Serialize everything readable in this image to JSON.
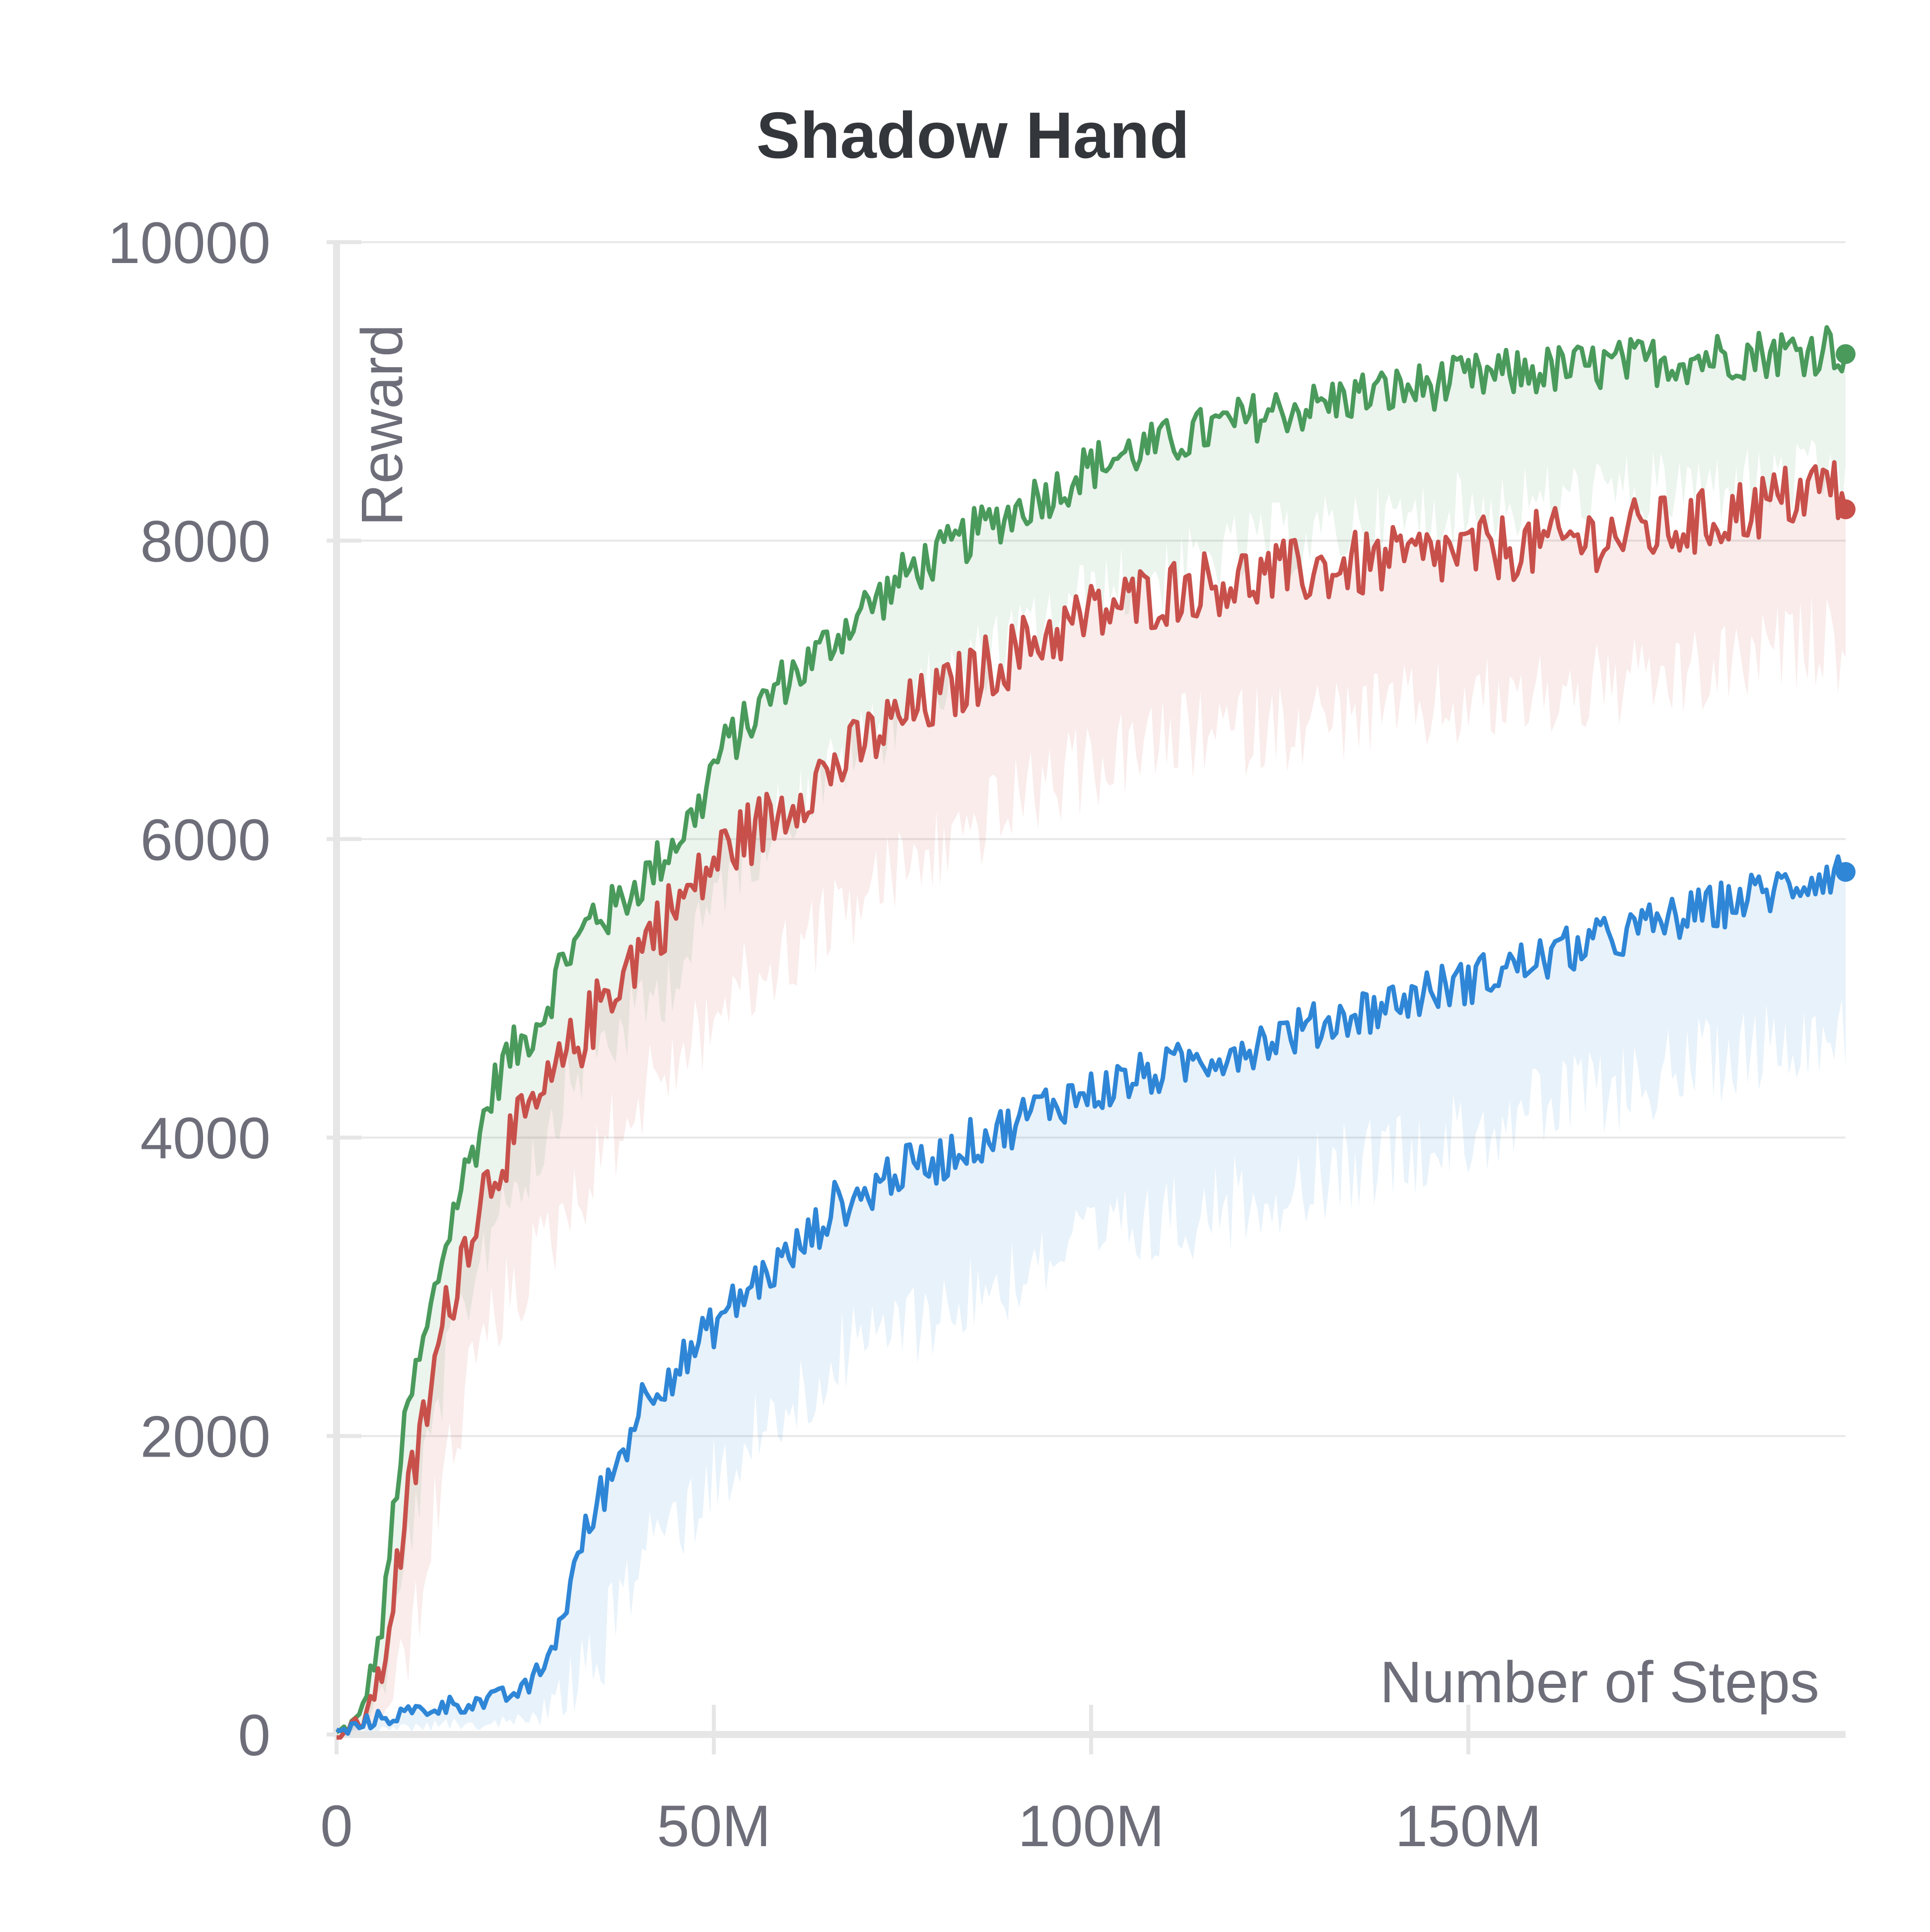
{
  "chart_data": {
    "type": "line",
    "title": "Shadow Hand",
    "xlabel": "Number of Steps",
    "ylabel": "Reward",
    "xlim": [
      0,
      200000000
    ],
    "ylim": [
      0,
      10000
    ],
    "x_ticks": [
      {
        "value": 0,
        "label": "0"
      },
      {
        "value": 50000000,
        "label": "50M"
      },
      {
        "value": 100000000,
        "label": "100M"
      },
      {
        "value": 150000000,
        "label": "150M"
      }
    ],
    "y_ticks": [
      {
        "value": 0,
        "label": "0"
      },
      {
        "value": 2000,
        "label": "2000"
      },
      {
        "value": 4000,
        "label": "4000"
      },
      {
        "value": 6000,
        "label": "6000"
      },
      {
        "value": 8000,
        "label": "8000"
      },
      {
        "value": 10000,
        "label": "10000"
      }
    ],
    "grid": true,
    "legend": "none",
    "series": [
      {
        "color": "#4a9a5c",
        "x": [
          0,
          3000000,
          6000000,
          8000000,
          10000000,
          12000000,
          14000000,
          16000000,
          18000000,
          20000000,
          22000000,
          25000000,
          28000000,
          30000000,
          32000000,
          34000000,
          36000000,
          38000000,
          40000000,
          42000000,
          45000000,
          48000000,
          50000000,
          52000000,
          55000000,
          58000000,
          60000000,
          62000000,
          65000000,
          68000000,
          70000000,
          73000000,
          76000000,
          80000000,
          83000000,
          86000000,
          90000000,
          93000000,
          96000000,
          98000000,
          100000000,
          103000000,
          106000000,
          110000000,
          113000000,
          116000000,
          120000000,
          123000000,
          126000000,
          130000000,
          133000000,
          136000000,
          140000000,
          143000000,
          146000000,
          150000000,
          153000000,
          156000000,
          160000000,
          163000000,
          166000000,
          170000000,
          173000000,
          176000000,
          180000000,
          183000000,
          186000000,
          190000000,
          193000000,
          196000000,
          198000000,
          200000000
        ],
        "values": [
          0,
          100,
          700,
          1700,
          2300,
          2700,
          3200,
          3600,
          3900,
          4200,
          4500,
          4650,
          4900,
          5200,
          5300,
          5500,
          5500,
          5600,
          5700,
          5800,
          6000,
          6200,
          6500,
          6650,
          6800,
          7000,
          7100,
          7150,
          7300,
          7450,
          7550,
          7650,
          7800,
          7900,
          8000,
          8100,
          8200,
          8300,
          8350,
          8450,
          8500,
          8550,
          8600,
          8650,
          8700,
          8750,
          8800,
          8850,
          8880,
          8900,
          8950,
          8980,
          9000,
          9020,
          9050,
          9080,
          9100,
          9120,
          9140,
          9150,
          9160,
          9180,
          9200,
          9210,
          9220,
          9240,
          9250,
          9260,
          9270,
          9280,
          9320,
          9250
        ]
      },
      {
        "color": "#c8504b",
        "x": [
          0,
          3000000,
          6000000,
          8000000,
          10000000,
          12000000,
          14000000,
          16000000,
          18000000,
          20000000,
          22000000,
          25000000,
          28000000,
          30000000,
          32000000,
          34000000,
          36000000,
          38000000,
          40000000,
          42000000,
          45000000,
          48000000,
          50000000,
          52000000,
          55000000,
          58000000,
          60000000,
          62000000,
          65000000,
          68000000,
          70000000,
          73000000,
          76000000,
          80000000,
          83000000,
          86000000,
          90000000,
          93000000,
          96000000,
          98000000,
          100000000,
          103000000,
          106000000,
          110000000,
          113000000,
          116000000,
          120000000,
          123000000,
          126000000,
          130000000,
          133000000,
          136000000,
          140000000,
          143000000,
          146000000,
          150000000,
          153000000,
          156000000,
          160000000,
          163000000,
          166000000,
          170000000,
          173000000,
          176000000,
          180000000,
          183000000,
          186000000,
          190000000,
          193000000,
          196000000,
          198000000,
          200000000
        ],
        "values": [
          0,
          50,
          400,
          1100,
          1700,
          2200,
          2700,
          3100,
          3450,
          3700,
          3900,
          4100,
          4300,
          4500,
          4650,
          4800,
          5000,
          5100,
          5250,
          5400,
          5550,
          5700,
          5850,
          5950,
          6050,
          6150,
          6250,
          6350,
          6450,
          6550,
          6650,
          6750,
          6850,
          6950,
          7050,
          7150,
          7250,
          7350,
          7400,
          7450,
          7500,
          7550,
          7600,
          7650,
          7700,
          7720,
          7740,
          7760,
          7780,
          7800,
          7820,
          7840,
          7860,
          7880,
          7900,
          7920,
          7940,
          7960,
          7980,
          8000,
          8020,
          8040,
          8060,
          8080,
          8100,
          8150,
          8200,
          8250,
          8300,
          8350,
          8400,
          8210
        ]
      },
      {
        "color": "#2f86d6",
        "x": [
          0,
          5000000,
          10000000,
          15000000,
          20000000,
          25000000,
          28000000,
          30000000,
          32000000,
          35000000,
          38000000,
          40000000,
          42000000,
          45000000,
          48000000,
          50000000,
          53000000,
          56000000,
          60000000,
          63000000,
          66000000,
          70000000,
          73000000,
          76000000,
          80000000,
          83000000,
          86000000,
          90000000,
          93000000,
          96000000,
          100000000,
          103000000,
          106000000,
          110000000,
          113000000,
          116000000,
          120000000,
          123000000,
          126000000,
          130000000,
          133000000,
          136000000,
          140000000,
          143000000,
          146000000,
          150000000,
          153000000,
          156000000,
          160000000,
          163000000,
          166000000,
          170000000,
          173000000,
          176000000,
          180000000,
          183000000,
          186000000,
          190000000,
          193000000,
          196000000,
          198000000,
          200000000
        ],
        "values": [
          0,
          100,
          150,
          200,
          220,
          300,
          500,
          800,
          1200,
          1600,
          1900,
          2200,
          2350,
          2450,
          2600,
          2750,
          2900,
          3050,
          3200,
          3350,
          3550,
          3600,
          3750,
          3800,
          3850,
          3950,
          4000,
          4100,
          4200,
          4250,
          4300,
          4350,
          4400,
          4450,
          4500,
          4550,
          4600,
          4650,
          4700,
          4750,
          4800,
          4850,
          4900,
          4950,
          5000,
          5050,
          5100,
          5150,
          5200,
          5250,
          5300,
          5350,
          5400,
          5450,
          5500,
          5550,
          5600,
          5650,
          5700,
          5750,
          5780,
          5780
        ]
      }
    ]
  }
}
